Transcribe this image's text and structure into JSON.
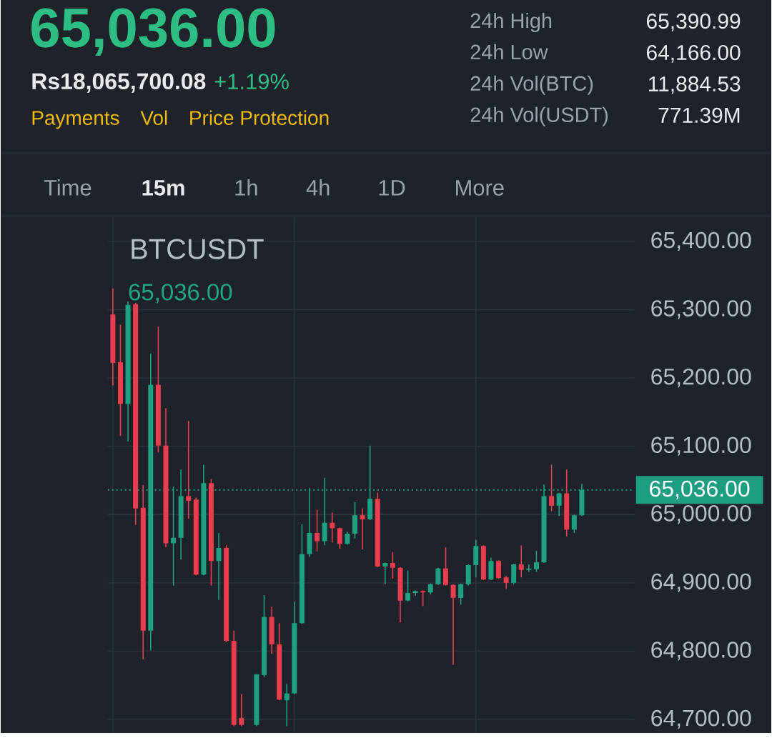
{
  "chart_data": {
    "type": "candlestick",
    "title": "BTCUSDT",
    "categories": [
      null,
      null,
      null,
      null,
      null,
      null,
      null,
      null,
      null,
      null,
      null,
      null,
      null,
      null,
      null,
      null,
      null,
      null,
      null,
      null,
      null,
      null,
      null,
      null,
      null,
      null,
      null,
      null,
      null,
      null,
      null,
      null,
      null,
      null,
      null,
      null,
      null,
      null,
      null,
      null,
      null,
      null,
      null,
      null,
      null,
      null,
      null,
      null,
      null,
      null,
      null,
      null,
      null,
      null,
      null,
      null,
      null,
      null,
      null,
      null,
      null,
      null,
      null
    ],
    "ohlc": [
      [
        65293,
        65331,
        65189,
        65222
      ],
      [
        65223,
        65278,
        65115,
        65162
      ],
      [
        65162,
        65312,
        65107,
        65307
      ],
      [
        65308,
        65310,
        64985,
        65009
      ],
      [
        65010,
        65043,
        64788,
        64830
      ],
      [
        64830,
        65236,
        64801,
        65190
      ],
      [
        65190,
        65275,
        65091,
        65101
      ],
      [
        65101,
        65156,
        64952,
        64958
      ],
      [
        64958,
        65041,
        64896,
        64966
      ],
      [
        64966,
        65066,
        64934,
        65027
      ],
      [
        65027,
        65137,
        64994,
        65020
      ],
      [
        65022,
        65025,
        64911,
        64912
      ],
      [
        64912,
        65073,
        64911,
        65046
      ],
      [
        65046,
        65052,
        64896,
        64932
      ],
      [
        64932,
        64973,
        64875,
        64951
      ],
      [
        64951,
        64955,
        64813,
        64815
      ],
      [
        64815,
        64830,
        64690,
        64692
      ],
      [
        64702,
        64737,
        64690,
        64692
      ],
      null,
      [
        64692,
        64766,
        64690,
        64766
      ],
      [
        64765,
        64882,
        64762,
        64850
      ],
      [
        64850,
        64865,
        64796,
        64810
      ],
      [
        64810,
        64841,
        64728,
        64729
      ],
      [
        64728,
        64752,
        64690,
        64738
      ],
      [
        64738,
        64872,
        64737,
        64841
      ],
      [
        64841,
        64986,
        64840,
        64942
      ],
      [
        64942,
        65039,
        64938,
        64973
      ],
      [
        64973,
        65007,
        64946,
        64961
      ],
      [
        64961,
        65054,
        64955,
        64988
      ],
      [
        64988,
        65003,
        64959,
        64980
      ],
      [
        64980,
        64981,
        64950,
        64957
      ],
      [
        64957,
        64975,
        64956,
        64972
      ],
      [
        64972,
        65018,
        64965,
        64999
      ],
      [
        64999,
        65009,
        64949,
        64993
      ],
      [
        64993,
        65101,
        64992,
        65023
      ],
      [
        65023,
        65032,
        64923,
        64924
      ],
      [
        64924,
        64930,
        64898,
        64929
      ],
      [
        64929,
        64945,
        64906,
        64922
      ],
      [
        64922,
        64923,
        64842,
        64874
      ],
      [
        64874,
        64918,
        64873,
        64885
      ],
      [
        64885,
        64889,
        64881,
        64888
      ],
      [
        64888,
        64889,
        64866,
        64886
      ],
      [
        64886,
        64899,
        64883,
        64898
      ],
      [
        64898,
        64922,
        64897,
        64921
      ],
      [
        64921,
        64952,
        64896,
        64897
      ],
      [
        64897,
        64898,
        64780,
        64878
      ],
      [
        64878,
        64899,
        64868,
        64898
      ],
      [
        64898,
        64927,
        64896,
        64926
      ],
      [
        64926,
        64963,
        64908,
        64954
      ],
      [
        64954,
        64955,
        64904,
        64905
      ],
      [
        64905,
        64937,
        64904,
        64932
      ],
      [
        64932,
        64933,
        64906,
        64907
      ],
      [
        64908,
        64910,
        64891,
        64900
      ],
      [
        64900,
        64928,
        64898,
        64927
      ],
      [
        64927,
        64955,
        64908,
        64919
      ],
      [
        64919,
        64927,
        64916,
        64921
      ],
      [
        64920,
        64947,
        64916,
        64930
      ],
      [
        64930,
        65044,
        64929,
        65027
      ],
      [
        65027,
        65073,
        65005,
        65013
      ],
      [
        65013,
        65032,
        64998,
        65031
      ],
      [
        65031,
        65066,
        64968,
        64978
      ],
      [
        64978,
        65000,
        64973,
        64999
      ],
      [
        64999,
        65045,
        64998,
        65036
      ]
    ],
    "colors": [
      "#EA3D4F",
      "#EA3D4F",
      "#20A083",
      "#EA3D4F",
      "#EA3D4F",
      "#20A083",
      "#EA3D4F",
      "#EA3D4F",
      "#20A083",
      "#20A083",
      "#EA3D4F",
      "#EA3D4F",
      "#20A083",
      "#EA3D4F",
      "#20A083",
      "#EA3D4F",
      "#EA3D4F",
      "#EA3D4F",
      null,
      "#20A083",
      "#20A083",
      "#EA3D4F",
      "#EA3D4F",
      "#20A083",
      "#20A083",
      "#20A083",
      "#20A083",
      "#EA3D4F",
      "#20A083",
      "#EA3D4F",
      "#EA3D4F",
      "#20A083",
      "#20A083",
      "#EA3D4F",
      "#20A083",
      "#EA3D4F",
      "#20A083",
      "#EA3D4F",
      "#EA3D4F",
      "#20A083",
      "#20A083",
      "#EA3D4F",
      "#20A083",
      "#20A083",
      "#EA3D4F",
      "#EA3D4F",
      "#20A083",
      "#20A083",
      "#20A083",
      "#EA3D4F",
      "#20A083",
      "#EA3D4F",
      "#EA3D4F",
      "#20A083",
      "#EA3D4F",
      "#20A083",
      "#20A083",
      "#20A083",
      "#EA3D4F",
      "#20A083",
      "#EA3D4F",
      "#20A083",
      "#20A083"
    ],
    "ylim": [
      64680,
      65435
    ],
    "yticks": [
      {
        "value": 64700,
        "label": "64,700.00"
      },
      {
        "value": 64800,
        "label": "64,800.00"
      },
      {
        "value": 64900,
        "label": "64,900.00"
      },
      {
        "value": 65000,
        "label": "65,000.00"
      },
      {
        "value": 65100,
        "label": "65,100.00"
      },
      {
        "value": 65200,
        "label": "65,200.00"
      },
      {
        "value": 65300,
        "label": "65,300.00"
      },
      {
        "value": 65400,
        "label": "65,400.00"
      }
    ],
    "grid": true,
    "tick_labels": "y",
    "ref_lines": [
      {
        "axis": "y",
        "value": 65036,
        "label": "65,036.00",
        "color": "#1E9E80",
        "line_style": "dotted"
      }
    ],
    "annotations": [
      "65,036.00",
      "Rs18,065,700.08",
      "+1.19%",
      "Payments",
      "Vol",
      "Price Protection",
      "24h High",
      "65,390.99",
      "24h Low",
      "64,166.00",
      "24h Vol(BTC)",
      "11,884.53",
      "24h Vol(USDT)",
      "771.39M",
      "Time",
      "15m",
      "1h",
      "4h",
      "1D",
      "More",
      "65,036.00"
    ]
  }
}
